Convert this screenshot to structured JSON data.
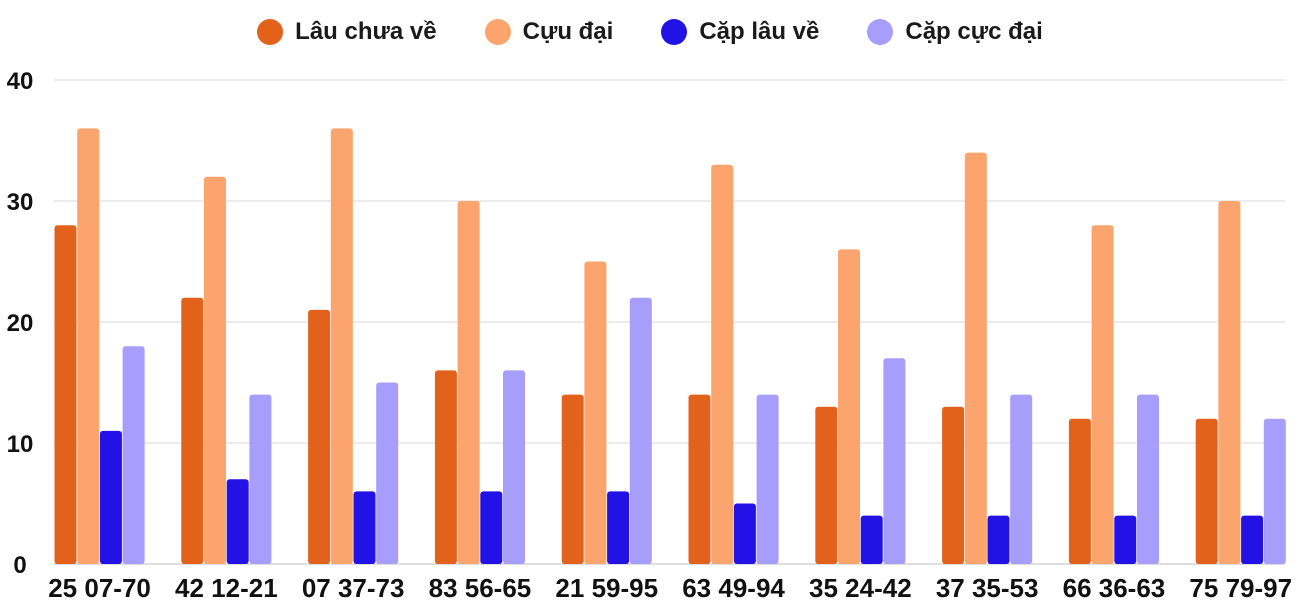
{
  "chart_data": {
    "type": "bar",
    "categories": [
      "25 07-70",
      "42 12-21",
      "07 37-73",
      "83 56-65",
      "21 59-95",
      "63 49-94",
      "35 24-42",
      "37 35-53",
      "66 36-63",
      "75 79-97"
    ],
    "series": [
      {
        "name": "Lâu chưa về",
        "color": "#e2621b",
        "values": [
          28,
          22,
          21,
          16,
          14,
          14,
          13,
          13,
          12,
          12
        ]
      },
      {
        "name": "Cựu đại",
        "color": "#fba46d",
        "values": [
          36,
          32,
          36,
          30,
          25,
          33,
          26,
          34,
          28,
          30
        ]
      },
      {
        "name": "Cặp lâu về",
        "color": "#2212e6",
        "values": [
          11,
          7,
          6,
          6,
          6,
          5,
          4,
          4,
          4,
          4
        ]
      },
      {
        "name": "Cặp cực đại",
        "color": "#a79dfb",
        "values": [
          18,
          14,
          15,
          16,
          22,
          14,
          17,
          14,
          14,
          12
        ]
      }
    ],
    "ylim": [
      0,
      40
    ],
    "yticks": [
      0,
      10,
      20,
      30,
      40
    ],
    "grid": true,
    "legend_position": "top"
  }
}
